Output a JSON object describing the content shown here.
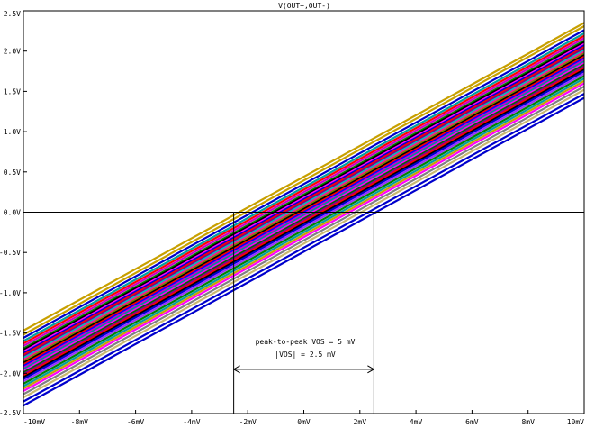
{
  "chart_data": {
    "type": "line",
    "title": "V(OUT+,OUT-)",
    "xlabel": "",
    "ylabel": "",
    "xlim": [
      -10,
      10
    ],
    "ylim": [
      -2.5,
      2.5
    ],
    "x_unit": "mV",
    "y_unit": "V",
    "x_ticks": [
      "-10mV",
      "-8mV",
      "-6mV",
      "-4mV",
      "-2mV",
      "0mV",
      "2mV",
      "4mV",
      "6mV",
      "8mV",
      "10mV"
    ],
    "y_ticks": [
      "-2.5V",
      "-2.0V",
      "-1.5V",
      "-1.0V",
      "-0.5V",
      "0.0V",
      "0.5V",
      "1.0V",
      "1.5V",
      "2.0V",
      "2.5V"
    ],
    "grid": false,
    "legend": "none",
    "series_style": "Monte Carlo family of straight transfer lines, many colors",
    "series": [
      {
        "x": [
          -10,
          10
        ],
        "y": [
          -1.47,
          2.35
        ],
        "color": "#c8a000"
      },
      {
        "x": [
          -10,
          10
        ],
        "y": [
          -1.52,
          2.31
        ],
        "color": "#c8a000"
      },
      {
        "x": [
          -10,
          10
        ],
        "y": [
          -1.56,
          2.26
        ],
        "color": "#0000cc"
      },
      {
        "x": [
          -10,
          10
        ],
        "y": [
          -1.6,
          2.22
        ],
        "color": "#00a0a0"
      },
      {
        "x": [
          -10,
          10
        ],
        "y": [
          -1.63,
          2.19
        ],
        "color": "#ff0000"
      },
      {
        "x": [
          -10,
          10
        ],
        "y": [
          -1.66,
          2.16
        ],
        "color": "#cc00cc"
      },
      {
        "x": [
          -10,
          10
        ],
        "y": [
          -1.69,
          2.13
        ],
        "color": "#008000"
      },
      {
        "x": [
          -10,
          10
        ],
        "y": [
          -1.71,
          2.11
        ],
        "color": "#000000"
      },
      {
        "x": [
          -10,
          10
        ],
        "y": [
          -1.73,
          2.09
        ],
        "color": "#ff00ff"
      },
      {
        "x": [
          -10,
          10
        ],
        "y": [
          -1.75,
          2.07
        ],
        "color": "#0000cc"
      },
      {
        "x": [
          -10,
          10
        ],
        "y": [
          -1.77,
          2.05
        ],
        "color": "#ff0000"
      },
      {
        "x": [
          -10,
          10
        ],
        "y": [
          -1.79,
          2.03
        ],
        "color": "#800080"
      },
      {
        "x": [
          -10,
          10
        ],
        "y": [
          -1.81,
          2.01
        ],
        "color": "#00c0c0"
      },
      {
        "x": [
          -10,
          10
        ],
        "y": [
          -1.83,
          1.99
        ],
        "color": "#ff1493"
      },
      {
        "x": [
          -10,
          10
        ],
        "y": [
          -1.85,
          1.97
        ],
        "color": "#808000"
      },
      {
        "x": [
          -10,
          10
        ],
        "y": [
          -1.87,
          1.95
        ],
        "color": "#000000"
      },
      {
        "x": [
          -10,
          10
        ],
        "y": [
          -1.89,
          1.93
        ],
        "color": "#ff0000"
      },
      {
        "x": [
          -10,
          10
        ],
        "y": [
          -1.91,
          1.91
        ],
        "color": "#0000ff"
      },
      {
        "x": [
          -10,
          10
        ],
        "y": [
          -1.93,
          1.89
        ],
        "color": "#cc00cc"
      },
      {
        "x": [
          -10,
          10
        ],
        "y": [
          -1.95,
          1.87
        ],
        "color": "#009090"
      },
      {
        "x": [
          -10,
          10
        ],
        "y": [
          -1.97,
          1.85
        ],
        "color": "#ff00ff"
      },
      {
        "x": [
          -10,
          10
        ],
        "y": [
          -1.99,
          1.83
        ],
        "color": "#006400"
      },
      {
        "x": [
          -10,
          10
        ],
        "y": [
          -2.01,
          1.81
        ],
        "color": "#8b008b"
      },
      {
        "x": [
          -10,
          10
        ],
        "y": [
          -2.03,
          1.79
        ],
        "color": "#ff0000"
      },
      {
        "x": [
          -10,
          10
        ],
        "y": [
          -2.05,
          1.77
        ],
        "color": "#000000"
      },
      {
        "x": [
          -10,
          10
        ],
        "y": [
          -2.07,
          1.75
        ],
        "color": "#0000cc"
      },
      {
        "x": [
          -10,
          10
        ],
        "y": [
          -2.1,
          1.72
        ],
        "color": "#9b30ff"
      },
      {
        "x": [
          -10,
          10
        ],
        "y": [
          -2.13,
          1.69
        ],
        "color": "#008000"
      },
      {
        "x": [
          -10,
          10
        ],
        "y": [
          -2.16,
          1.66
        ],
        "color": "#00a0a0"
      },
      {
        "x": [
          -10,
          10
        ],
        "y": [
          -2.19,
          1.63
        ],
        "color": "#c8a000"
      },
      {
        "x": [
          -10,
          10
        ],
        "y": [
          -2.22,
          1.6
        ],
        "color": "#ff00ff"
      },
      {
        "x": [
          -10,
          10
        ],
        "y": [
          -2.26,
          1.56
        ],
        "color": "#808080"
      },
      {
        "x": [
          -10,
          10
        ],
        "y": [
          -2.3,
          1.52
        ],
        "color": "#c8b870"
      },
      {
        "x": [
          -10,
          10
        ],
        "y": [
          -2.35,
          1.47
        ],
        "color": "#0000cc"
      },
      {
        "x": [
          -10,
          10
        ],
        "y": [
          -2.4,
          1.42
        ],
        "color": "#0000cc"
      }
    ],
    "markers": {
      "zero_line_y": 0.0,
      "left_vline_x": -2.5,
      "right_vline_x": 2.5,
      "arrow_y": -1.95
    },
    "annotations": [
      "peak-to-peak VOS = 5 mV",
      "|VOS| = 2.5 mV"
    ]
  }
}
